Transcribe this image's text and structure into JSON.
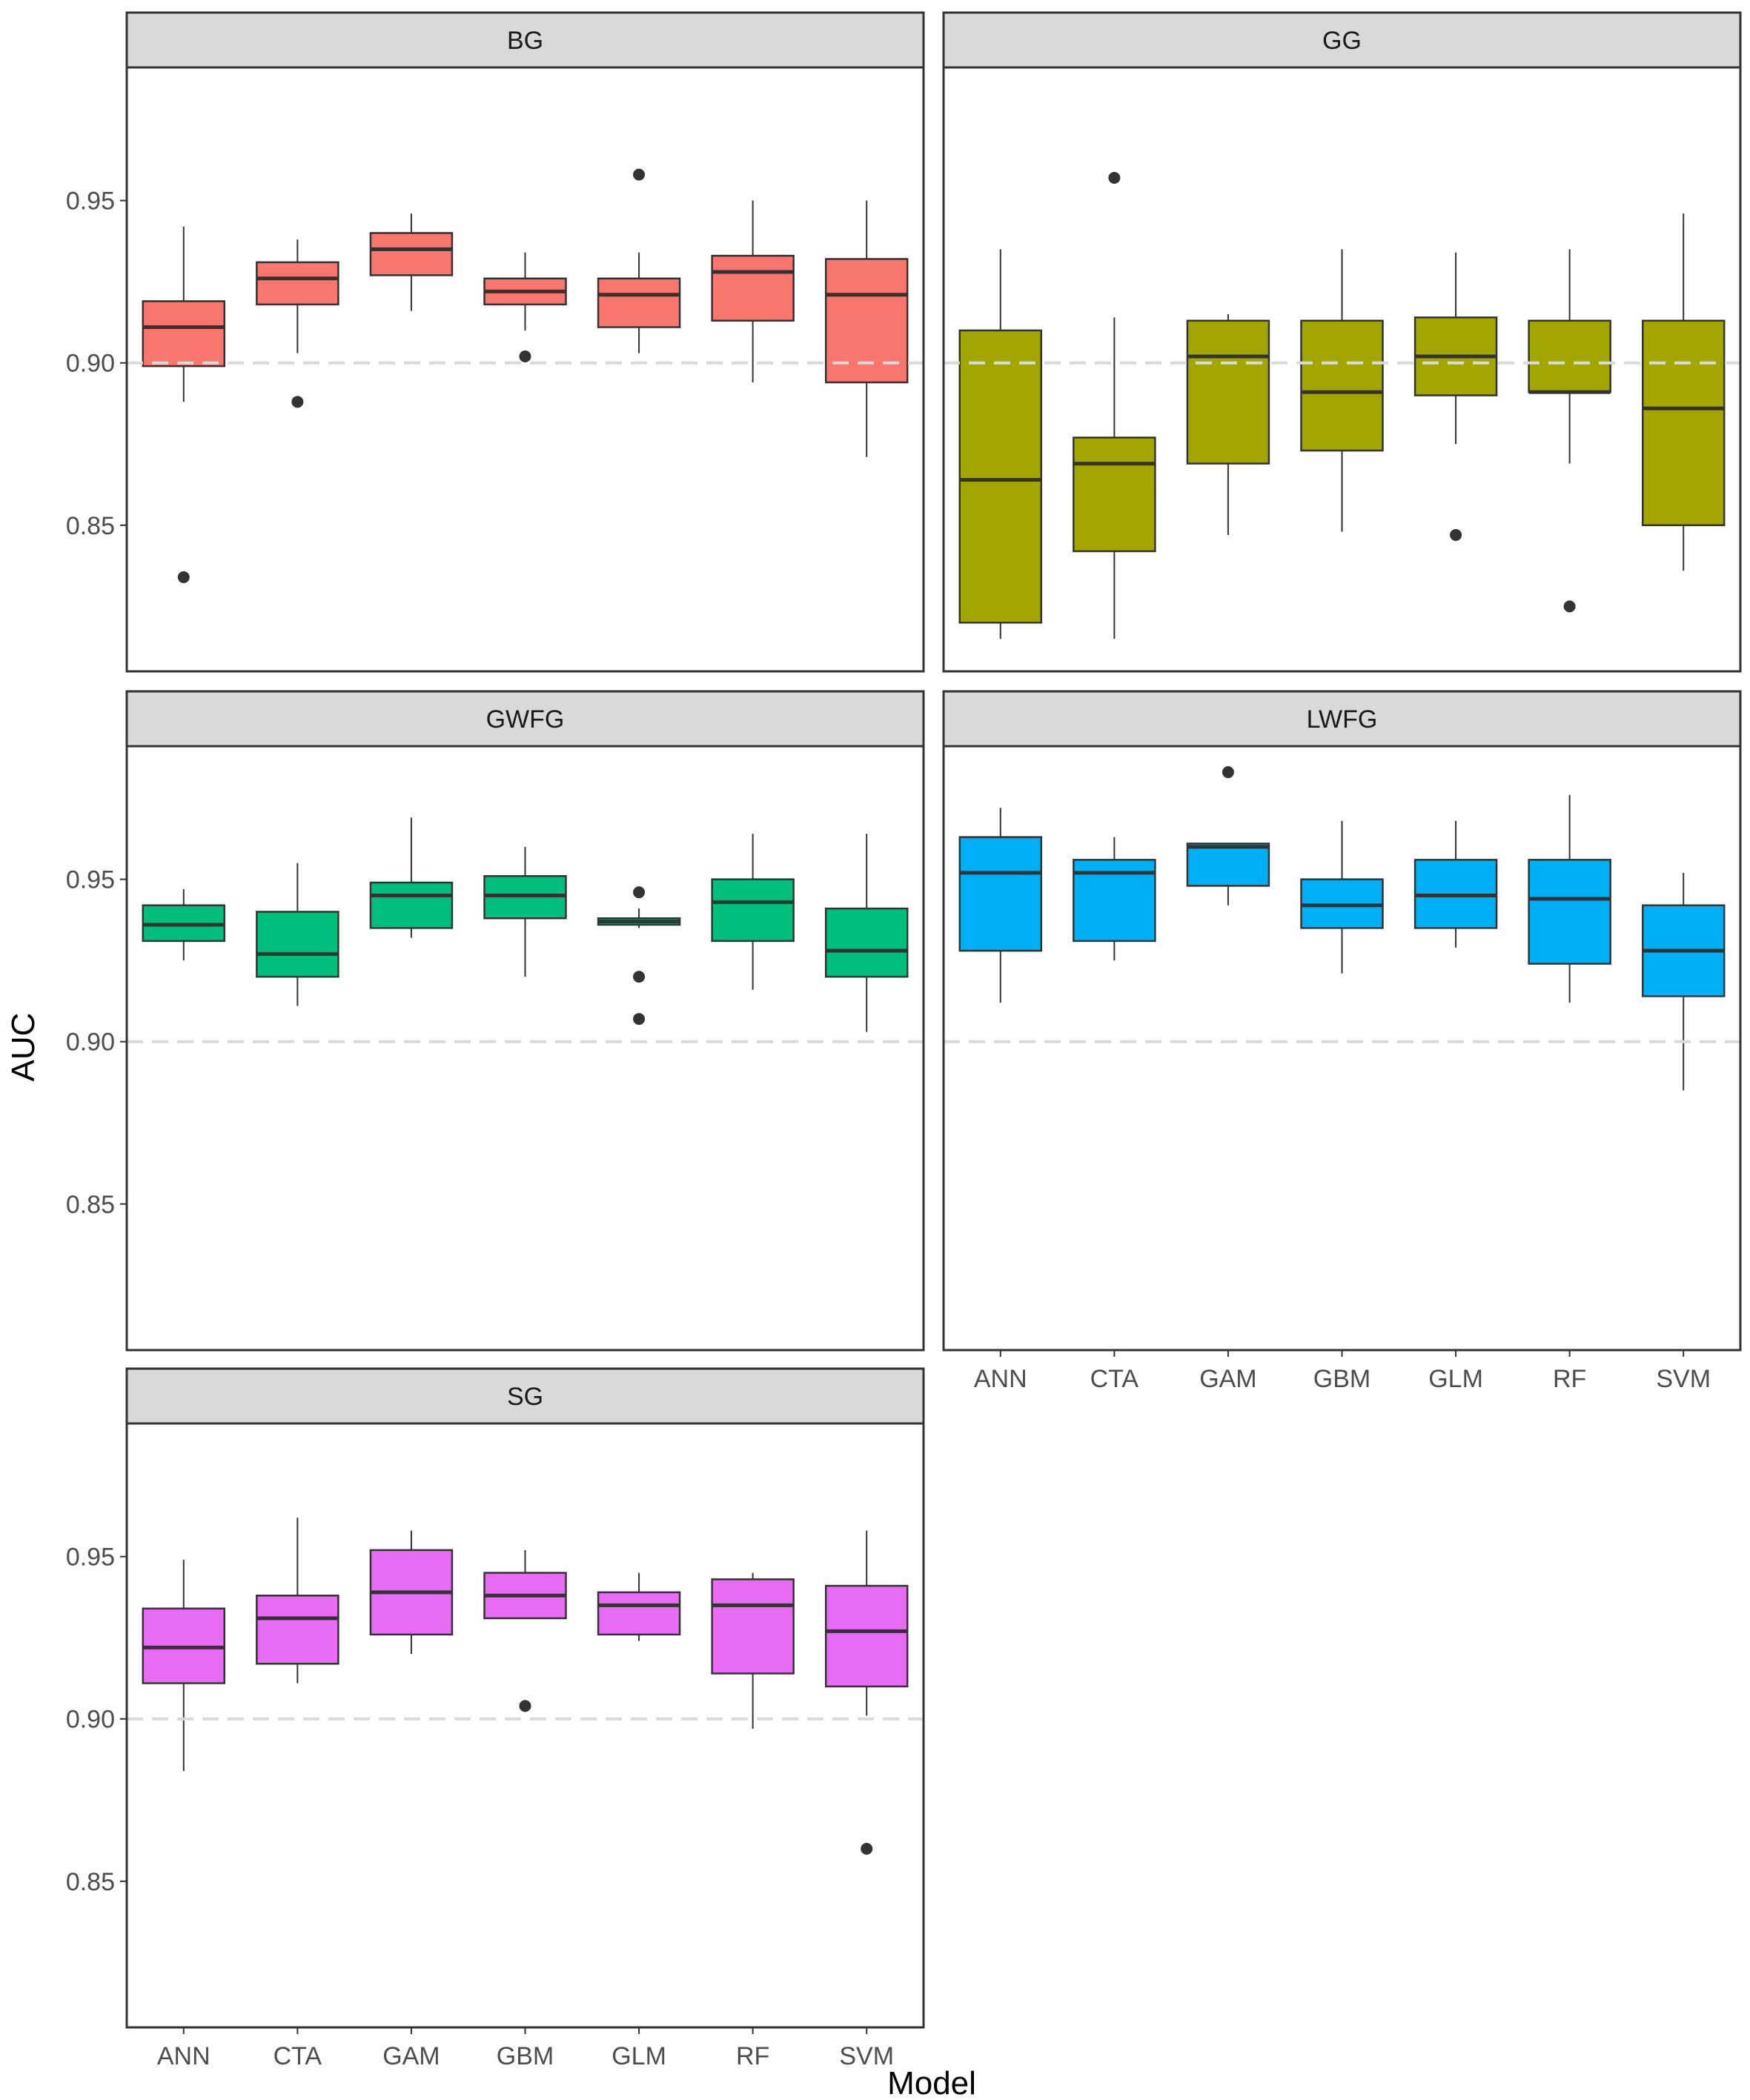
{
  "chart_data": {
    "type": "boxplot",
    "xlabel": "Model",
    "ylabel": "AUC",
    "categories": [
      "ANN",
      "CTA",
      "GAM",
      "GBM",
      "GLM",
      "RF",
      "SVM"
    ],
    "ylim": [
      0.805,
      0.991
    ],
    "yticks": [
      0.85,
      0.9,
      0.95
    ],
    "ytick_labels": [
      "0.85",
      "0.90",
      "0.95"
    ],
    "reference_line": 0.9,
    "grid": false,
    "legend": "none",
    "panels": [
      {
        "name": "BG",
        "color": "#F8766D",
        "boxes": [
          {
            "category": "ANN",
            "lower": 0.888,
            "q1": 0.899,
            "median": 0.911,
            "q3": 0.919,
            "upper": 0.942,
            "outliers": [
              0.834
            ]
          },
          {
            "category": "CTA",
            "lower": 0.903,
            "q1": 0.918,
            "median": 0.926,
            "q3": 0.931,
            "upper": 0.938,
            "outliers": [
              0.888
            ]
          },
          {
            "category": "GAM",
            "lower": 0.916,
            "q1": 0.927,
            "median": 0.935,
            "q3": 0.94,
            "upper": 0.946,
            "outliers": []
          },
          {
            "category": "GBM",
            "lower": 0.91,
            "q1": 0.918,
            "median": 0.922,
            "q3": 0.926,
            "upper": 0.934,
            "outliers": [
              0.902
            ]
          },
          {
            "category": "GLM",
            "lower": 0.903,
            "q1": 0.911,
            "median": 0.921,
            "q3": 0.926,
            "upper": 0.934,
            "outliers": [
              0.958
            ]
          },
          {
            "category": "RF",
            "lower": 0.894,
            "q1": 0.913,
            "median": 0.928,
            "q3": 0.933,
            "upper": 0.95,
            "outliers": []
          },
          {
            "category": "SVM",
            "lower": 0.871,
            "q1": 0.894,
            "median": 0.921,
            "q3": 0.932,
            "upper": 0.95,
            "outliers": []
          }
        ]
      },
      {
        "name": "GG",
        "color": "#A3A500",
        "boxes": [
          {
            "category": "ANN",
            "lower": 0.815,
            "q1": 0.82,
            "median": 0.864,
            "q3": 0.91,
            "upper": 0.935,
            "outliers": []
          },
          {
            "category": "CTA",
            "lower": 0.815,
            "q1": 0.842,
            "median": 0.869,
            "q3": 0.877,
            "upper": 0.914,
            "outliers": [
              0.957
            ]
          },
          {
            "category": "GAM",
            "lower": 0.847,
            "q1": 0.869,
            "median": 0.902,
            "q3": 0.913,
            "upper": 0.915,
            "outliers": []
          },
          {
            "category": "GBM",
            "lower": 0.848,
            "q1": 0.873,
            "median": 0.891,
            "q3": 0.913,
            "upper": 0.935,
            "outliers": []
          },
          {
            "category": "GLM",
            "lower": 0.875,
            "q1": 0.89,
            "median": 0.902,
            "q3": 0.914,
            "upper": 0.934,
            "outliers": [
              0.847
            ]
          },
          {
            "category": "RF",
            "lower": 0.869,
            "q1": 0.891,
            "median": 0.891,
            "q3": 0.913,
            "upper": 0.935,
            "outliers": [
              0.825
            ]
          },
          {
            "category": "SVM",
            "lower": 0.836,
            "q1": 0.85,
            "median": 0.886,
            "q3": 0.913,
            "upper": 0.946,
            "outliers": []
          }
        ]
      },
      {
        "name": "GWFG",
        "color": "#00BF7D",
        "boxes": [
          {
            "category": "ANN",
            "lower": 0.925,
            "q1": 0.931,
            "median": 0.936,
            "q3": 0.942,
            "upper": 0.947,
            "outliers": []
          },
          {
            "category": "CTA",
            "lower": 0.911,
            "q1": 0.92,
            "median": 0.927,
            "q3": 0.94,
            "upper": 0.955,
            "outliers": []
          },
          {
            "category": "GAM",
            "lower": 0.932,
            "q1": 0.935,
            "median": 0.945,
            "q3": 0.949,
            "upper": 0.969,
            "outliers": []
          },
          {
            "category": "GBM",
            "lower": 0.92,
            "q1": 0.938,
            "median": 0.945,
            "q3": 0.951,
            "upper": 0.96,
            "outliers": []
          },
          {
            "category": "GLM",
            "lower": 0.935,
            "q1": 0.936,
            "median": 0.937,
            "q3": 0.938,
            "upper": 0.941,
            "outliers": [
              0.946,
              0.92,
              0.907
            ]
          },
          {
            "category": "RF",
            "lower": 0.916,
            "q1": 0.931,
            "median": 0.943,
            "q3": 0.95,
            "upper": 0.964,
            "outliers": []
          },
          {
            "category": "SVM",
            "lower": 0.903,
            "q1": 0.92,
            "median": 0.928,
            "q3": 0.941,
            "upper": 0.964,
            "outliers": []
          }
        ]
      },
      {
        "name": "LWFG",
        "color": "#00B0F6",
        "boxes": [
          {
            "category": "ANN",
            "lower": 0.912,
            "q1": 0.928,
            "median": 0.952,
            "q3": 0.963,
            "upper": 0.972,
            "outliers": []
          },
          {
            "category": "CTA",
            "lower": 0.925,
            "q1": 0.931,
            "median": 0.952,
            "q3": 0.956,
            "upper": 0.963,
            "outliers": []
          },
          {
            "category": "GAM",
            "lower": 0.942,
            "q1": 0.948,
            "median": 0.96,
            "q3": 0.961,
            "upper": 0.961,
            "outliers": [
              0.983
            ]
          },
          {
            "category": "GBM",
            "lower": 0.921,
            "q1": 0.935,
            "median": 0.942,
            "q3": 0.95,
            "upper": 0.968,
            "outliers": []
          },
          {
            "category": "GLM",
            "lower": 0.929,
            "q1": 0.935,
            "median": 0.945,
            "q3": 0.956,
            "upper": 0.968,
            "outliers": []
          },
          {
            "category": "RF",
            "lower": 0.912,
            "q1": 0.924,
            "median": 0.944,
            "q3": 0.956,
            "upper": 0.976,
            "outliers": []
          },
          {
            "category": "SVM",
            "lower": 0.885,
            "q1": 0.914,
            "median": 0.928,
            "q3": 0.942,
            "upper": 0.952,
            "outliers": []
          }
        ]
      },
      {
        "name": "SG",
        "color": "#E76BF3",
        "boxes": [
          {
            "category": "ANN",
            "lower": 0.884,
            "q1": 0.911,
            "median": 0.922,
            "q3": 0.934,
            "upper": 0.949,
            "outliers": []
          },
          {
            "category": "CTA",
            "lower": 0.911,
            "q1": 0.917,
            "median": 0.931,
            "q3": 0.938,
            "upper": 0.962,
            "outliers": []
          },
          {
            "category": "GAM",
            "lower": 0.92,
            "q1": 0.926,
            "median": 0.939,
            "q3": 0.952,
            "upper": 0.958,
            "outliers": []
          },
          {
            "category": "GBM",
            "lower": 0.931,
            "q1": 0.931,
            "median": 0.938,
            "q3": 0.945,
            "upper": 0.952,
            "outliers": [
              0.904
            ]
          },
          {
            "category": "GLM",
            "lower": 0.924,
            "q1": 0.926,
            "median": 0.935,
            "q3": 0.939,
            "upper": 0.945,
            "outliers": []
          },
          {
            "category": "RF",
            "lower": 0.897,
            "q1": 0.914,
            "median": 0.935,
            "q3": 0.943,
            "upper": 0.945,
            "outliers": []
          },
          {
            "category": "SVM",
            "lower": 0.901,
            "q1": 0.91,
            "median": 0.927,
            "q3": 0.941,
            "upper": 0.958,
            "outliers": [
              0.86
            ]
          }
        ]
      }
    ]
  }
}
